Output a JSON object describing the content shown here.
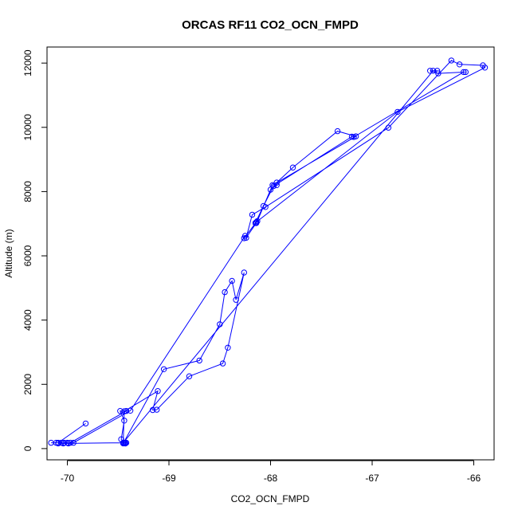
{
  "chart_data": {
    "type": "line",
    "title": "ORCAS RF11 CO2_OCN_FMPD",
    "xlabel": "CO2_OCN_FMPD",
    "ylabel": "Altitude (m)",
    "xlim": [
      -70.2,
      -65.8
    ],
    "ylim": [
      -350,
      12500
    ],
    "xticks": [
      -70,
      -69,
      -68,
      -67,
      -66
    ],
    "yticks": [
      0,
      2000,
      4000,
      6000,
      8000,
      10000,
      12000
    ],
    "grid": false,
    "legend": "none",
    "series": [
      {
        "color": "#0000ff",
        "markers": "open-circle",
        "points": [
          [
            -69.82,
            780
          ],
          [
            -70.09,
            180
          ],
          [
            -70.16,
            180
          ],
          [
            -70.11,
            180
          ],
          [
            -70.06,
            180
          ],
          [
            -70.03,
            180
          ],
          [
            -70.0,
            180
          ],
          [
            -69.97,
            180
          ],
          [
            -69.42,
            1170
          ],
          [
            -69.48,
            1170
          ],
          [
            -69.44,
            870
          ],
          [
            -69.47,
            290
          ],
          [
            -69.43,
            160
          ],
          [
            -69.43,
            180
          ],
          [
            -69.45,
            160
          ],
          [
            -69.05,
            2470
          ],
          [
            -68.7,
            2740
          ],
          [
            -68.5,
            3870
          ],
          [
            -68.45,
            4870
          ],
          [
            -68.38,
            5220
          ],
          [
            -68.34,
            4630
          ],
          [
            -68.26,
            5480
          ],
          [
            -68.42,
            3140
          ],
          [
            -68.47,
            2650
          ],
          [
            -68.8,
            2250
          ],
          [
            -69.12,
            1210
          ],
          [
            -69.16,
            1200
          ],
          [
            -69.11,
            1790
          ],
          [
            -69.44,
            1160
          ],
          [
            -69.45,
            180
          ],
          [
            -66.4,
            11760
          ],
          [
            -66.36,
            11760
          ],
          [
            -66.43,
            11760
          ],
          [
            -66.35,
            11680
          ],
          [
            -66.08,
            11720
          ],
          [
            -66.1,
            11720
          ],
          [
            -67.18,
            9700
          ],
          [
            -67.2,
            9710
          ],
          [
            -67.97,
            8170
          ],
          [
            -68.07,
            7550
          ],
          [
            -68.15,
            7020
          ],
          [
            -68.13,
            7080
          ],
          [
            -68.0,
            8060
          ],
          [
            -67.94,
            8200
          ],
          [
            -67.94,
            8280
          ],
          [
            -67.78,
            8750
          ],
          [
            -67.34,
            9880
          ],
          [
            -67.16,
            9720
          ],
          [
            -67.98,
            8200
          ],
          [
            -68.14,
            7020
          ],
          [
            -68.24,
            6560
          ],
          [
            -68.18,
            7280
          ],
          [
            -68.05,
            7520
          ],
          [
            -66.84,
            9990
          ],
          [
            -66.22,
            12080
          ],
          [
            -66.14,
            11960
          ],
          [
            -65.91,
            11930
          ],
          [
            -65.89,
            11860
          ],
          [
            -66.75,
            10480
          ],
          [
            -68.14,
            7050
          ],
          [
            -68.26,
            6550
          ],
          [
            -68.25,
            6620
          ],
          [
            -69.38,
            1180
          ],
          [
            -69.94,
            180
          ],
          [
            -70.09,
            160
          ],
          [
            -70.04,
            160
          ],
          [
            -69.99,
            160
          ],
          [
            -69.45,
            180
          ],
          [
            -69.43,
            160
          ],
          [
            -69.44,
            170
          ],
          [
            -69.42,
            180
          ],
          [
            -69.43,
            160
          ]
        ]
      }
    ]
  }
}
